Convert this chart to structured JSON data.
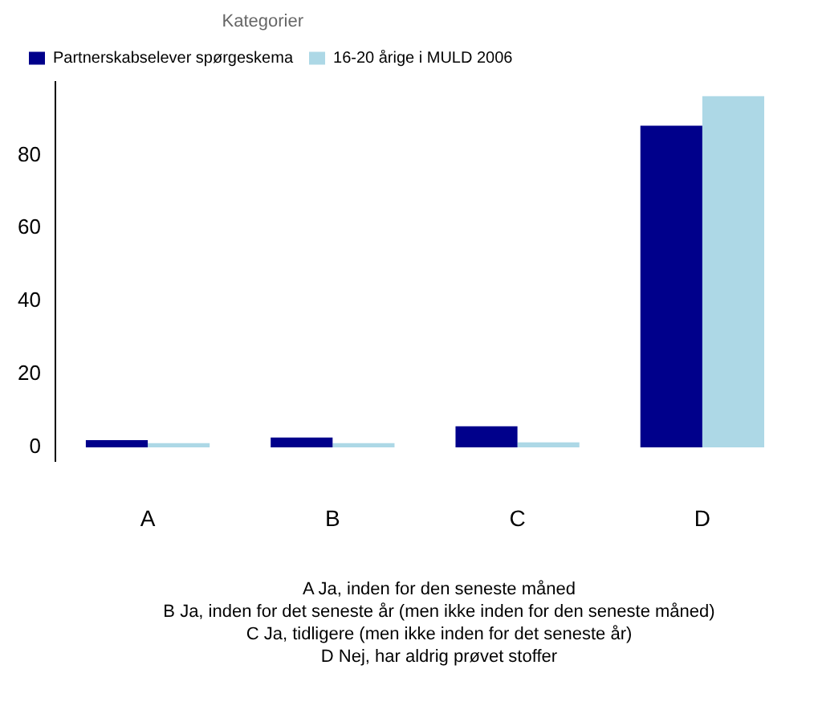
{
  "chart_data": {
    "type": "bar",
    "legend_title": "Kategorier",
    "categories": [
      "A",
      "B",
      "C",
      "D"
    ],
    "series": [
      {
        "name": "Partnerskabselever spørgeskema",
        "color": "#00008b",
        "values": [
          2.0,
          2.7,
          5.8,
          88.1
        ]
      },
      {
        "name": "16-20 årige i MULD 2006",
        "color": "#add8e6",
        "values": [
          1.2,
          1.2,
          1.4,
          96.2
        ]
      }
    ],
    "ylim": [
      -3.8,
      100
    ],
    "yticks": [
      0,
      20,
      40,
      60,
      80
    ],
    "grid": false,
    "legend": "top left",
    "annotations": [
      "A Ja, inden for den seneste måned",
      "B Ja, inden for det seneste år (men ikke inden for den seneste måned)",
      "C Ja, tidligere (men ikke inden for det seneste år)",
      "D Nej, har aldrig prøvet stoffer"
    ]
  }
}
